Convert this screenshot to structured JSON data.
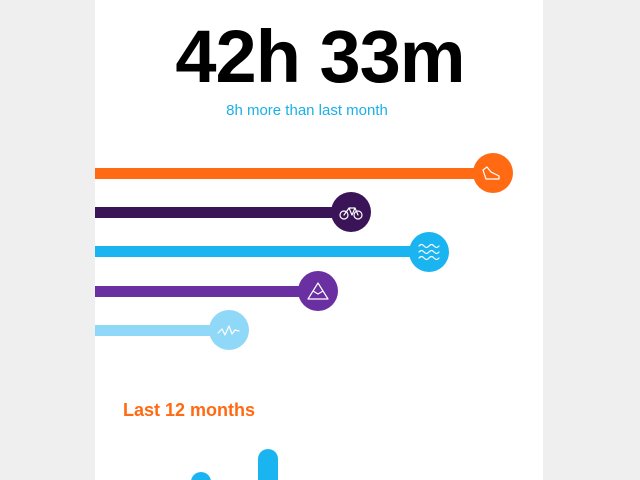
{
  "header": {
    "total": "42h 33m",
    "comparison": "8h more than last month"
  },
  "section": {
    "title": "Last 12 months"
  }
}
